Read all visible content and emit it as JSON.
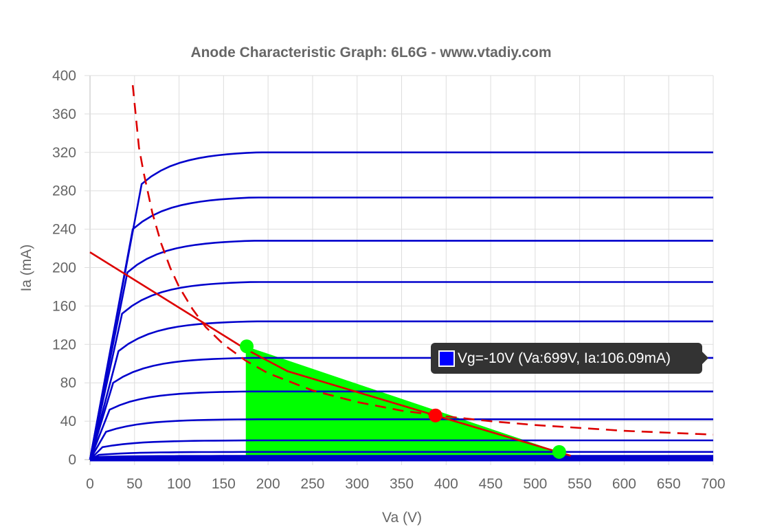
{
  "chart_data": {
    "type": "line",
    "title": "Anode Characteristic Graph: 6L6G - www.vtadiy.com",
    "xlabel": "Va (V)",
    "ylabel": "Ia (mA)",
    "xlim": [
      0,
      700
    ],
    "ylim": [
      0,
      400
    ],
    "x_ticks": [
      "0",
      "50",
      "100",
      "150",
      "200",
      "250",
      "300",
      "350",
      "400",
      "450",
      "500",
      "550",
      "600",
      "650",
      "700"
    ],
    "y_ticks": [
      "0",
      "40",
      "80",
      "120",
      "160",
      "200",
      "240",
      "280",
      "320",
      "360",
      "400"
    ],
    "grid": true,
    "colors": {
      "curves": "#0000cc",
      "load": "#dd0000",
      "dissipation": "#dd0000",
      "swing": "#00ff00",
      "bias_point": "#ff0000"
    },
    "grid_curves": [
      {
        "knee_va": 58,
        "ia_end": 320,
        "ia_at_knee": 287
      },
      {
        "knee_va": 48,
        "ia_end": 273,
        "ia_at_knee": 240
      },
      {
        "knee_va": 42,
        "ia_end": 228,
        "ia_at_knee": 195
      },
      {
        "knee_va": 36,
        "ia_end": 185,
        "ia_at_knee": 152
      },
      {
        "knee_va": 32,
        "ia_end": 144,
        "ia_at_knee": 113
      },
      {
        "knee_va": 26,
        "ia_end": 106,
        "ia_at_knee": 80
      },
      {
        "knee_va": 22,
        "ia_end": 71,
        "ia_at_knee": 52
      },
      {
        "knee_va": 18,
        "ia_end": 42,
        "ia_at_knee": 29
      },
      {
        "knee_va": 14,
        "ia_end": 20,
        "ia_at_knee": 13
      },
      {
        "knee_va": 10,
        "ia_end": 8,
        "ia_at_knee": 5
      },
      {
        "knee_va": 8,
        "ia_end": 3,
        "ia_at_knee": 2
      },
      {
        "knee_va": 6,
        "ia_end": 1,
        "ia_at_knee": 0.5
      },
      {
        "knee_va": 4,
        "ia_end": 0,
        "ia_at_knee": 0
      }
    ],
    "load_line": {
      "x": [
        0,
        175,
        222,
        388,
        540
      ],
      "y": [
        216,
        115,
        92,
        46,
        4
      ]
    },
    "dissipation_curve": {
      "x": [
        48,
        55,
        60,
        70,
        80,
        90,
        100,
        115,
        130,
        150,
        175,
        200,
        250,
        300,
        350,
        400,
        450,
        500,
        550,
        600,
        650,
        700
      ],
      "y": [
        390,
        325,
        300,
        257,
        225,
        200,
        180,
        157,
        138,
        120,
        103,
        90,
        72,
        60,
        51,
        45,
        40,
        36,
        33,
        30,
        28,
        26
      ]
    },
    "swing_area": {
      "x": [
        175,
        175,
        527,
        527
      ],
      "y": [
        118,
        4,
        4,
        8
      ]
    },
    "points": [
      {
        "name": "upper-swing",
        "va": 176,
        "ia": 118,
        "color": "#00ff00"
      },
      {
        "name": "bias-point",
        "va": 388,
        "ia": 46,
        "color": "#ff0000"
      },
      {
        "name": "lower-swing",
        "va": 527,
        "ia": 8,
        "color": "#00ff00"
      }
    ]
  },
  "tooltip": {
    "text": "Vg=-10V (Va:699V, Ia:106.09mA)",
    "swatch_color": "#0000ff"
  }
}
